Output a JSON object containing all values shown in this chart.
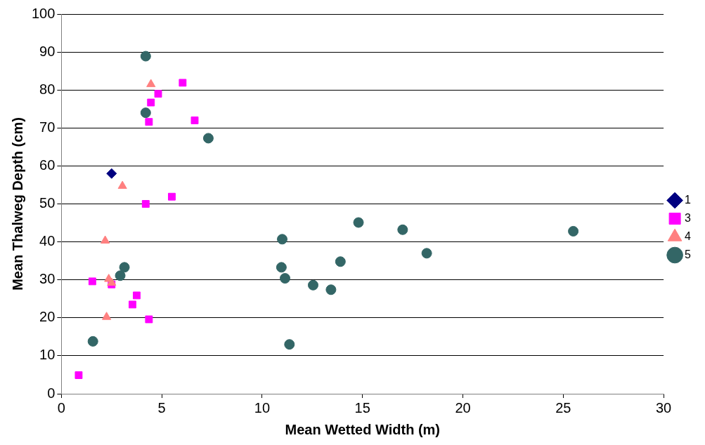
{
  "chart_data": {
    "type": "scatter",
    "xlabel": "Mean Wetted Width (m)",
    "ylabel": "Mean Thalweg Depth (cm)",
    "xlim": [
      0,
      30
    ],
    "xticks": [
      0,
      5,
      10,
      15,
      20,
      25,
      30
    ],
    "ylim": [
      0,
      100
    ],
    "yticks": [
      0,
      10,
      20,
      30,
      40,
      50,
      60,
      70,
      80,
      90,
      100
    ],
    "grid": "y",
    "legend": "right",
    "series": [
      {
        "name": "1",
        "color": "#000080",
        "marker": "diamond",
        "x": [
          2.5
        ],
        "values": [
          58
        ]
      },
      {
        "name": "3",
        "color": "#ff00ff",
        "marker": "square",
        "x": [
          0.86,
          1.54,
          2.5,
          3.75,
          3.54,
          4.36,
          4.2,
          5.5,
          4.36,
          6.64,
          4.46,
          4.82,
          6.04
        ],
        "values": [
          4.9,
          29.6,
          28.8,
          25.9,
          23.5,
          19.6,
          50,
          51.9,
          71.6,
          72,
          76.7,
          79,
          81.9
        ]
      },
      {
        "name": "4",
        "color": "#ff8080",
        "marker": "triangle",
        "x": [
          4.46,
          3.04,
          2.18,
          2.36,
          2.5,
          2.25
        ],
        "values": [
          81.5,
          54.7,
          40.3,
          30.2,
          29.2,
          20.2
        ]
      },
      {
        "name": "5",
        "color": "#336666",
        "marker": "circle",
        "x": [
          4.2,
          4.2,
          7.32,
          3.14,
          2.93,
          1.57,
          11,
          10.96,
          11.14,
          11.36,
          12.54,
          13.43,
          13.9,
          14.8,
          17,
          18.2,
          25.5
        ],
        "values": [
          88.9,
          74,
          67.3,
          33.3,
          31.1,
          13.8,
          40.7,
          33.3,
          30.4,
          13,
          28.6,
          27.4,
          34.8,
          45.1,
          43.2,
          37,
          42.8
        ]
      }
    ]
  }
}
